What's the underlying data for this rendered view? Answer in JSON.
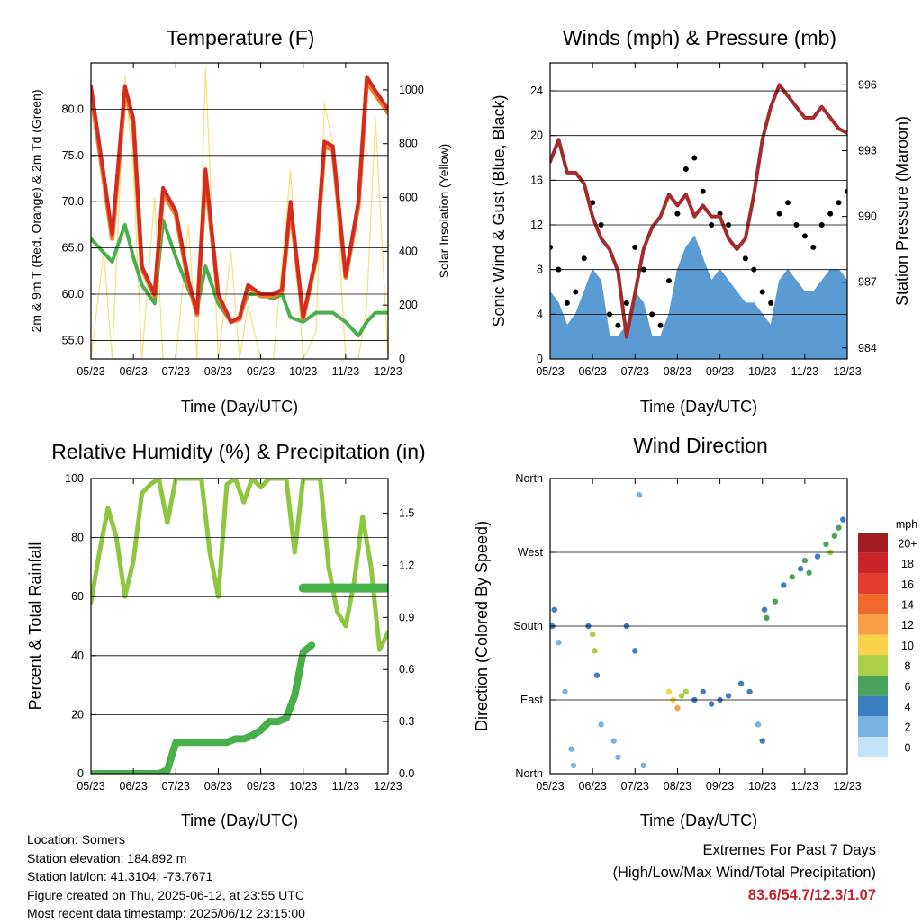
{
  "chart_data": [
    {
      "type": "line",
      "title": "Temperature (F)",
      "xlabel": "Time (Day/UTC)",
      "ylabel": "2m & 9m T (Red, Orange) & 2m Td (Green)",
      "y2label": "Solar Insolation (Yellow)",
      "x_ticks": [
        "05/23",
        "06/23",
        "07/23",
        "08/23",
        "09/23",
        "10/23",
        "11/23",
        "12/23"
      ],
      "y_ticks": [
        "55.0",
        "60.0",
        "65.0",
        "70.0",
        "75.0",
        "80.0"
      ],
      "y2_ticks": [
        "0",
        "200",
        "400",
        "600",
        "800",
        "1000"
      ],
      "ylim": [
        53,
        85
      ],
      "y2lim": [
        0,
        1100
      ],
      "x": [
        0,
        0.3,
        0.5,
        0.8,
        1.0,
        1.2,
        1.5,
        1.7,
        2.0,
        2.3,
        2.5,
        2.7,
        3.0,
        3.3,
        3.5,
        3.7,
        4.0,
        4.3,
        4.5,
        4.7,
        5.0,
        5.3,
        5.5,
        5.7,
        6.0,
        6.3,
        6.5,
        6.7,
        7.0
      ],
      "series": [
        {
          "name": "2m T",
          "color": "#d42a1f",
          "values": [
            82.5,
            73,
            66.5,
            82.5,
            79,
            63,
            60,
            71.5,
            69,
            61.5,
            58,
            73.5,
            60,
            57,
            57.5,
            61,
            60,
            60,
            60.5,
            70,
            57.5,
            64,
            76.5,
            76,
            62,
            70,
            83.5,
            82,
            80
          ]
        },
        {
          "name": "9m T",
          "color": "#f07e2a",
          "values": [
            81.8,
            72.5,
            66,
            81.8,
            78.5,
            62.8,
            59.8,
            71,
            68.6,
            61.2,
            57.8,
            73,
            59.8,
            57,
            57.3,
            60.8,
            59.8,
            59.8,
            60.3,
            69.5,
            57.4,
            63.8,
            76,
            75.6,
            61.8,
            69.6,
            83,
            81.6,
            79.6
          ]
        },
        {
          "name": "2m Td",
          "color": "#47b04a",
          "values": [
            66,
            64.5,
            63.5,
            67.5,
            64,
            61,
            59,
            68,
            64,
            60.5,
            58.5,
            63,
            59,
            57,
            57.5,
            60,
            60,
            59.5,
            60,
            57.5,
            57,
            58,
            58,
            58,
            57,
            55.5,
            57,
            58,
            58
          ]
        },
        {
          "name": "Solar Insolation",
          "axis": "y2",
          "color": "#f3e27a",
          "values": [
            0,
            400,
            0,
            1050,
            700,
            0,
            600,
            0,
            0,
            500,
            0,
            1080,
            0,
            400,
            0,
            200,
            0,
            0,
            350,
            700,
            0,
            100,
            950,
            800,
            0,
            0,
            200,
            900,
            0
          ]
        }
      ]
    },
    {
      "type": "scatter",
      "title": "Winds (mph) & Pressure (mb)",
      "xlabel": "Time (Day/UTC)",
      "ylabel": "Sonic Wind & Gust (Blue, Black)",
      "y2label": "Station Pressure (Maroon)",
      "x_ticks": [
        "05/23",
        "06/23",
        "07/23",
        "08/23",
        "09/23",
        "10/23",
        "11/23",
        "12/23"
      ],
      "y_ticks": [
        "0",
        "4",
        "8",
        "12",
        "16",
        "20",
        "24"
      ],
      "y2_ticks": [
        "984",
        "987",
        "990",
        "993",
        "996"
      ],
      "ylim": [
        0,
        26.5
      ],
      "y2lim": [
        983.5,
        997
      ],
      "x": [
        0,
        0.2,
        0.4,
        0.6,
        0.8,
        1.0,
        1.2,
        1.4,
        1.6,
        1.8,
        2.0,
        2.2,
        2.4,
        2.6,
        2.8,
        3.0,
        3.2,
        3.4,
        3.6,
        3.8,
        4.0,
        4.2,
        4.4,
        4.6,
        4.8,
        5.0,
        5.2,
        5.4,
        5.6,
        5.8,
        6.0,
        6.2,
        6.4,
        6.6,
        6.8,
        7.0
      ],
      "series": [
        {
          "name": "Gust",
          "color": "#000000",
          "values": [
            10,
            8,
            5,
            6,
            9,
            14,
            12,
            4,
            3,
            5,
            10,
            8,
            4,
            3,
            7,
            13,
            17,
            18,
            15,
            12,
            13,
            12,
            10,
            9,
            8,
            6,
            5,
            13,
            14,
            12,
            11,
            10,
            12,
            13,
            14,
            15
          ]
        },
        {
          "name": "Wind",
          "color": "#5a9bd4",
          "values": [
            6,
            5,
            3,
            4,
            6,
            8,
            7,
            2,
            2,
            3,
            6,
            5,
            2,
            2,
            4,
            8,
            10,
            11,
            9,
            7,
            8,
            7,
            6,
            5,
            5,
            4,
            3,
            7,
            8,
            7,
            6,
            6,
            7,
            8,
            8,
            7
          ]
        },
        {
          "name": "Pressure",
          "axis": "y2",
          "color": "#a52a2a",
          "values": [
            992.5,
            993.5,
            992,
            992,
            991.5,
            990,
            989,
            988.5,
            987.5,
            984.5,
            986.5,
            988.5,
            989.5,
            990,
            991,
            990.5,
            991,
            990,
            990.5,
            990,
            990,
            989,
            988.5,
            989,
            991,
            993.5,
            995,
            996,
            995.5,
            995,
            994.5,
            994.5,
            995,
            994.5,
            994,
            993.8
          ]
        }
      ]
    },
    {
      "type": "line",
      "title": "Relative Humidity (%) & Precipitation (in)",
      "xlabel": "Time (Day/UTC)",
      "ylabel": "Percent & Total Rainfall",
      "x_ticks": [
        "05/23",
        "06/23",
        "07/23",
        "08/23",
        "09/23",
        "10/23",
        "11/23",
        "12/23"
      ],
      "y_ticks": [
        "0",
        "20",
        "40",
        "60",
        "80",
        "100"
      ],
      "y2_ticks": [
        "0.0",
        "0.3",
        "0.6",
        "0.9",
        "1.2",
        "1.5"
      ],
      "ylim": [
        0,
        100
      ],
      "y2lim": [
        0,
        1.7
      ],
      "x": [
        0,
        0.2,
        0.4,
        0.6,
        0.8,
        1.0,
        1.2,
        1.4,
        1.6,
        1.8,
        2.0,
        2.2,
        2.4,
        2.6,
        2.8,
        3.0,
        3.2,
        3.4,
        3.6,
        3.8,
        4.0,
        4.2,
        4.4,
        4.6,
        4.8,
        5.0,
        5.2,
        5.4,
        5.6,
        5.8,
        6.0,
        6.2,
        6.4,
        6.6,
        6.8,
        7.0
      ],
      "series": [
        {
          "name": "Relative Humidity",
          "color": "#8dc63f",
          "values": [
            58,
            75,
            90,
            80,
            60,
            72,
            95,
            98,
            100,
            85,
            100,
            100,
            100,
            100,
            75,
            60,
            98,
            100,
            92,
            100,
            97,
            100,
            100,
            100,
            75,
            100,
            100,
            100,
            70,
            55,
            50,
            65,
            87,
            70,
            42,
            48
          ]
        },
        {
          "name": "Total Precipitation",
          "axis": "y2",
          "color": "#47b04a",
          "values": [
            0,
            0,
            0,
            0,
            0,
            0,
            0,
            0,
            0,
            0.02,
            0.18,
            0.18,
            0.18,
            0.18,
            0.18,
            0.18,
            0.18,
            0.2,
            0.2,
            0.22,
            0.25,
            0.3,
            0.3,
            0.32,
            0.45,
            0.7,
            0.74,
            null,
            null,
            null,
            null,
            null,
            null,
            null,
            null,
            null
          ]
        },
        {
          "name": "Total Precipitation (current)",
          "axis": "y2",
          "color": "#47b04a",
          "values": [
            null,
            null,
            null,
            null,
            null,
            null,
            null,
            null,
            null,
            null,
            null,
            null,
            null,
            null,
            null,
            null,
            null,
            null,
            null,
            null,
            null,
            null,
            null,
            null,
            null,
            1.07,
            1.07,
            1.07,
            1.07,
            1.07,
            1.07,
            1.07,
            1.07,
            1.07,
            1.07,
            1.07
          ]
        }
      ]
    },
    {
      "type": "scatter",
      "title": "Wind Direction",
      "xlabel": "Time (Day/UTC)",
      "ylabel": "Direction (Colored By Speed)",
      "x_ticks": [
        "05/23",
        "06/23",
        "07/23",
        "08/23",
        "09/23",
        "10/23",
        "11/23",
        "12/23"
      ],
      "y_ticks": [
        "North",
        "East",
        "South",
        "West",
        "North"
      ],
      "ylim": [
        0,
        360
      ],
      "colorbar": {
        "label": "mph",
        "labels": [
          "20+",
          "18",
          "16",
          "14",
          "12",
          "10",
          "8",
          "6",
          "4",
          "2",
          "0"
        ],
        "colors": [
          "#a11d22",
          "#c9262a",
          "#e43d30",
          "#f06a30",
          "#f7a048",
          "#f9d24a",
          "#a8cf45",
          "#4aa35a",
          "#3b7fc0",
          "#7ab2e0",
          "#c4e2f7"
        ]
      },
      "x": [
        0.05,
        0.1,
        0.2,
        0.35,
        0.5,
        0.55,
        0.9,
        1.0,
        1.05,
        1.1,
        1.2,
        1.5,
        1.6,
        1.8,
        2.0,
        2.1,
        2.2,
        2.8,
        2.9,
        3.0,
        3.1,
        3.2,
        3.4,
        3.6,
        3.8,
        4.0,
        4.2,
        4.5,
        4.7,
        4.9,
        5.0,
        5.05,
        5.1,
        5.3,
        5.5,
        5.7,
        5.9,
        6.0,
        6.1,
        6.3,
        6.5,
        6.6,
        6.7,
        6.8,
        6.9
      ],
      "y": [
        180,
        200,
        160,
        100,
        30,
        10,
        180,
        170,
        150,
        120,
        60,
        40,
        20,
        180,
        150,
        340,
        10,
        100,
        90,
        80,
        95,
        100,
        90,
        100,
        85,
        90,
        95,
        110,
        100,
        60,
        40,
        200,
        190,
        210,
        230,
        240,
        250,
        260,
        245,
        265,
        280,
        270,
        290,
        300,
        310
      ],
      "speed": [
        4,
        5,
        3,
        2,
        2,
        2,
        5,
        9,
        8,
        4,
        3,
        2,
        3,
        5,
        4,
        3,
        2,
        10,
        11,
        12,
        9,
        8,
        5,
        5,
        4,
        4,
        5,
        4,
        5,
        3,
        4,
        5,
        7,
        6,
        5,
        6,
        5,
        7,
        6,
        5,
        6,
        8,
        7,
        6,
        4
      ]
    }
  ],
  "info": {
    "location": "Location: Somers",
    "elevation": "Station elevation: 184.892 m",
    "latlon": "Station lat/lon: 41.3104; -73.7671",
    "created": "Figure created on Thu, 2025-06-12, at 23:55 UTC",
    "latest": "Most recent data timestamp: 2025/06/12 23:15:00"
  },
  "extremes": {
    "title": "Extremes For Past 7 Days",
    "subtitle": "(High/Low/Max Wind/Total Precipitation)",
    "value": "83.6/54.7/12.3/1.07"
  }
}
